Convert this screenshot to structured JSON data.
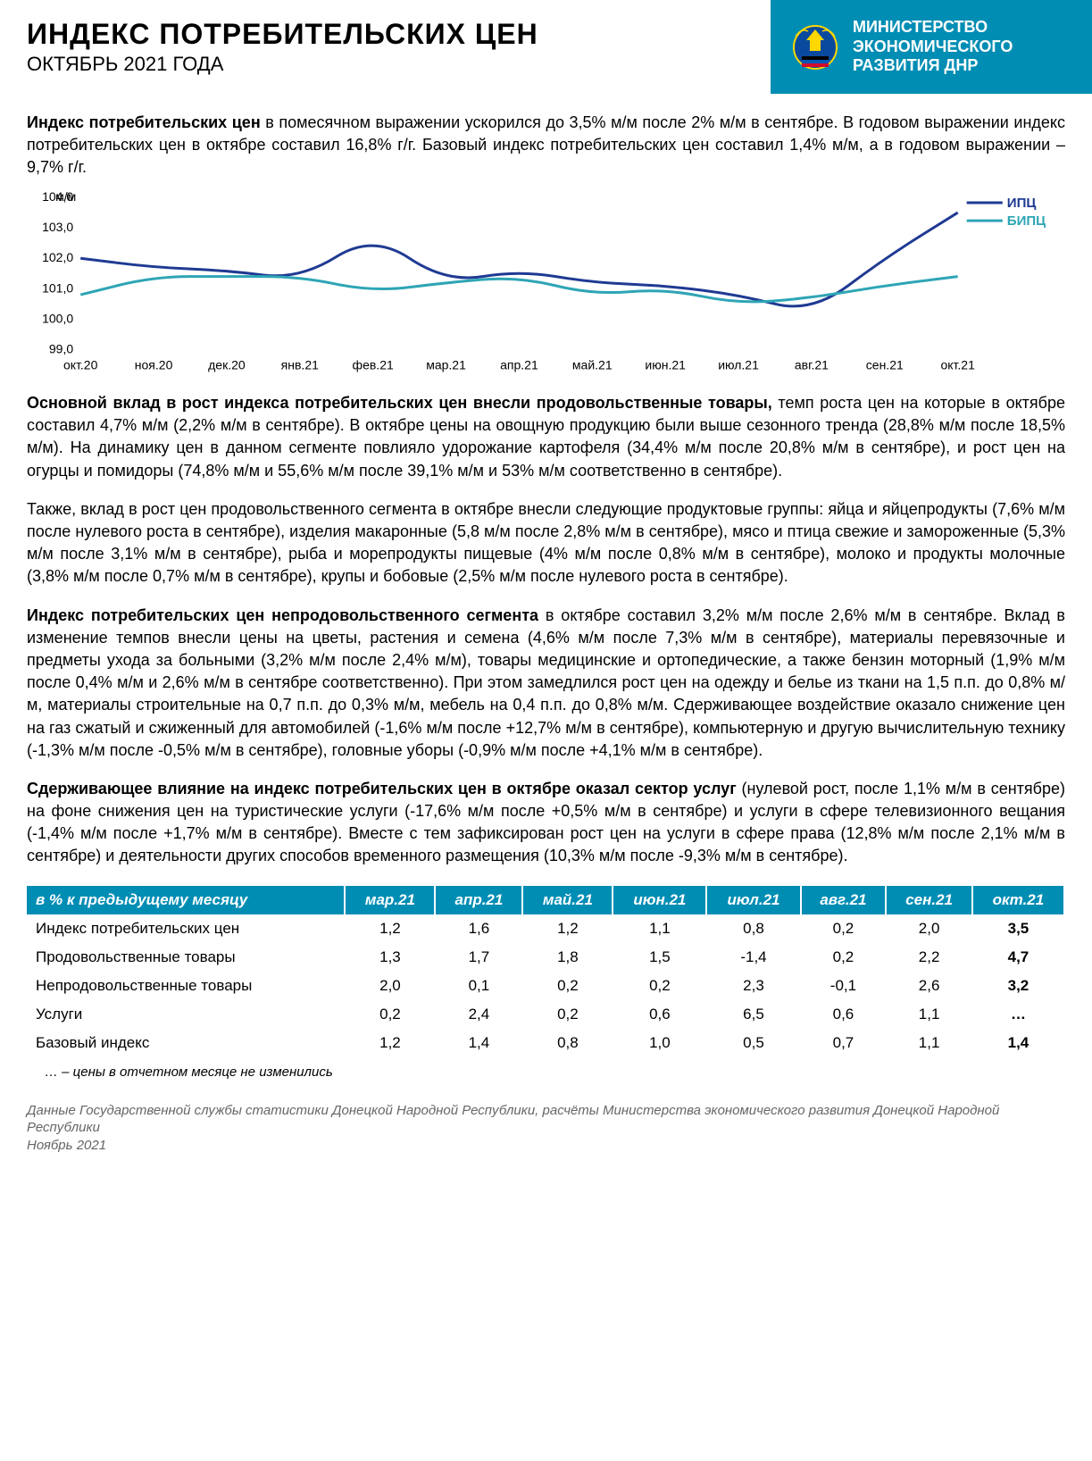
{
  "header": {
    "title": "ИНДЕКС ПОТРЕБИТЕЛЬСКИХ ЦЕН",
    "subtitle": "ОКТЯБРЬ 2021 ГОДА",
    "ministry_line1": "МИНИСТЕРСТВО",
    "ministry_line2": "ЭКОНОМИЧЕСКОГО",
    "ministry_line3": "РАЗВИТИЯ ДНР"
  },
  "intro": {
    "lead": "Индекс потребительских цен",
    "rest": " в помесячном выражении ускорился до 3,5% м/м после 2% м/м в сентябре. В годовом выражении индекс потребительских цен в октябре составил 16,8% г/г. Базовый индекс потребительских цен составил 1,4% м/м, а в годовом выражении – 9,7% г/г."
  },
  "chart": {
    "type": "line",
    "ylabel": "м/м",
    "y_ticks": [
      99.0,
      100.0,
      101.0,
      102.0,
      103.0,
      104.0
    ],
    "x_labels": [
      "окт.20",
      "ноя.20",
      "дек.20",
      "янв.21",
      "фев.21",
      "мар.21",
      "апр.21",
      "май.21",
      "июн.21",
      "июл.21",
      "авг.21",
      "сен.21",
      "окт.21"
    ],
    "series": [
      {
        "name": "ИПЦ",
        "color": "#1f3a93",
        "stroke_width": 3,
        "values": [
          102.0,
          101.7,
          101.6,
          101.3,
          102.8,
          101.2,
          101.6,
          101.2,
          101.1,
          100.8,
          100.2,
          102.0,
          103.5
        ]
      },
      {
        "name": "БИПЦ",
        "color": "#2ea5b5",
        "stroke_width": 3,
        "values": [
          100.8,
          101.4,
          101.4,
          101.4,
          100.9,
          101.2,
          101.4,
          100.8,
          101.0,
          100.5,
          100.7,
          101.1,
          101.4
        ]
      }
    ],
    "ylim": [
      99.0,
      104.0
    ],
    "background_color": "#ffffff",
    "legend_position": "top-right"
  },
  "para1": {
    "lead": "Основной вклад в рост индекса потребительских цен внесли продовольственные товары,",
    "rest": " темп роста цен на которые в октябре составил 4,7% м/м (2,2% м/м в сентябре). В октябре цены на овощную продукцию были выше сезонного тренда (28,8% м/м после 18,5% м/м). На динамику цен в данном сегменте повлияло удорожание картофеля (34,4% м/м после 20,8% м/м в сентябре), и рост цен на огурцы и помидоры (74,8% м/м и 55,6% м/м после 39,1% м/м и 53% м/м соответственно в сентябре)."
  },
  "para2": {
    "text": "Также, вклад в рост цен продовольственного сегмента в октябре внесли следующие продуктовые группы: яйца и яйцепродукты (7,6% м/м после нулевого роста в сентябре), изделия макаронные (5,8 м/м после 2,8% м/м в сентябре), мясо и птица свежие и замороженные (5,3% м/м после 3,1% м/м в сентябре), рыба и морепродукты пищевые (4% м/м после 0,8% м/м в сентябре), молоко и продукты молочные (3,8% м/м после 0,7% м/м в сентябре), крупы и бобовые (2,5% м/м после нулевого роста в сентябре)."
  },
  "para3": {
    "lead": "Индекс потребительских цен непродовольственного сегмента",
    "rest": " в октябре составил 3,2% м/м после 2,6% м/м в сентябре. Вклад в изменение темпов внесли цены на цветы, растения и семена (4,6% м/м после 7,3% м/м в сентябре), материалы перевязочные и предметы ухода за больными (3,2% м/м после 2,4% м/м), товары медицинские и ортопедические, а также бензин моторный (1,9% м/м после 0,4% м/м и 2,6% м/м в сентябре соответственно). При этом замедлился рост цен на одежду и белье из ткани на 1,5 п.п. до 0,8% м/м, материалы строительные на 0,7 п.п. до 0,3% м/м, мебель на 0,4 п.п. до 0,8% м/м. Сдерживающее воздействие оказало снижение цен на газ сжатый и сжиженный для автомобилей (-1,6% м/м после +12,7% м/м в сентябре), компьютерную и другую вычислительную технику (-1,3% м/м после -0,5% м/м в сентябре), головные уборы (-0,9% м/м после +4,1% м/м в сентябре)."
  },
  "para4": {
    "lead": "Сдерживающее влияние на индекс потребительских цен в октябре оказал сектор услуг",
    "rest": " (нулевой рост, после 1,1% м/м в сентябре) на фоне снижения цен на туристические услуги (-17,6% м/м после +0,5% м/м в сентябре) и услуги в сфере телевизионного вещания (-1,4% м/м после +1,7% м/м в сентябре). Вместе с тем зафиксирован рост цен на услуги в сфере права (12,8% м/м после 2,1% м/м в сентябре) и деятельности других способов временного размещения (10,3% м/м после -9,3% м/м в сентябре)."
  },
  "table": {
    "header_label": "в % к предыдущему месяцу",
    "columns": [
      "мар.21",
      "апр.21",
      "май.21",
      "июн.21",
      "июл.21",
      "авг.21",
      "сен.21",
      "окт.21"
    ],
    "rows": [
      {
        "label": "Индекс потребительских цен",
        "cells": [
          "1,2",
          "1,6",
          "1,2",
          "1,1",
          "0,8",
          "0,2",
          "2,0",
          "3,5"
        ]
      },
      {
        "label": "Продовольственные товары",
        "cells": [
          "1,3",
          "1,7",
          "1,8",
          "1,5",
          "-1,4",
          "0,2",
          "2,2",
          "4,7"
        ]
      },
      {
        "label": "Непродовольственные товары",
        "cells": [
          "2,0",
          "0,1",
          "0,2",
          "0,2",
          "2,3",
          "-0,1",
          "2,6",
          "3,2"
        ]
      },
      {
        "label": "Услуги",
        "cells": [
          "0,2",
          "2,4",
          "0,2",
          "0,6",
          "6,5",
          "0,6",
          "1,1",
          "…"
        ]
      },
      {
        "label": "Базовый индекс",
        "cells": [
          "1,2",
          "1,4",
          "0,8",
          "1,0",
          "0,5",
          "0,7",
          "1,1",
          "1,4"
        ]
      }
    ]
  },
  "footnote": "… – цены в отчетном месяце не изменились",
  "source_line1": "Данные Государственной службы статистики Донецкой Народной Республики, расчёты Министерства экономического развития Донецкой Народной Республики",
  "source_line2": "Ноябрь 2021"
}
